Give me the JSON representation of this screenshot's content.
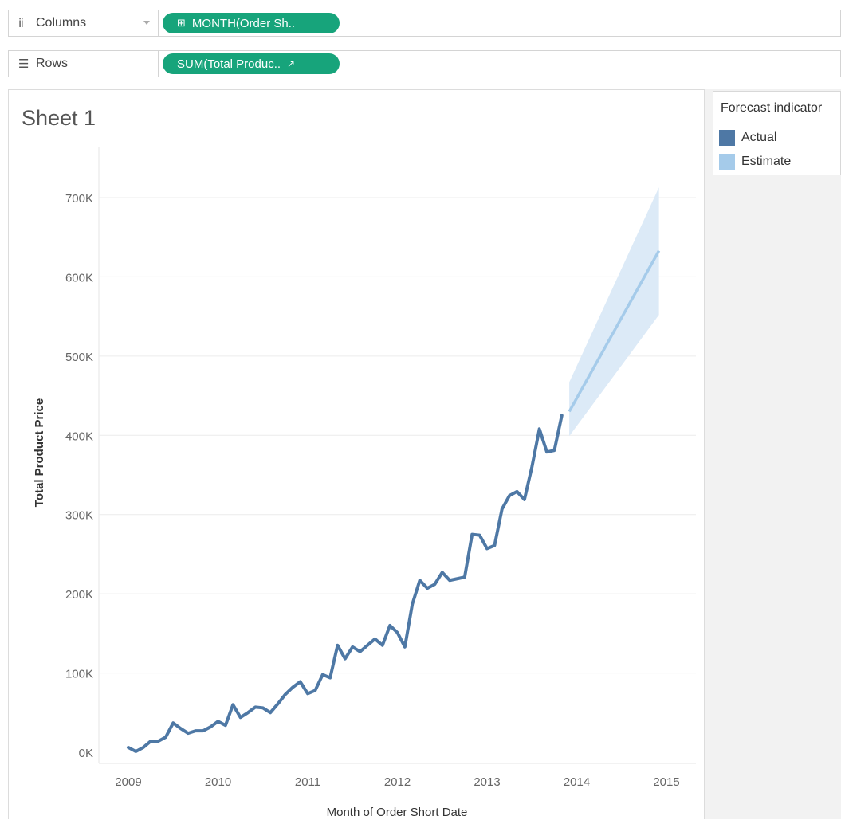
{
  "shelves": {
    "columns": {
      "label": "Columns",
      "icon": "columns-icon",
      "pill": "MONTH(Order Sh..",
      "pill_icon": "expand-icon"
    },
    "rows": {
      "label": "Rows",
      "icon": "rows-icon",
      "pill": "SUM(Total Produc..",
      "pill_icon": "forecast-icon"
    }
  },
  "sheet": {
    "title": "Sheet 1"
  },
  "legend": {
    "title": "Forecast indicator",
    "items": [
      {
        "label": "Actual",
        "color": "#4e78a5"
      },
      {
        "label": "Estimate",
        "color": "#a5cbea"
      }
    ]
  },
  "chart_data": {
    "type": "line",
    "xlabel": "Month of Order Short Date",
    "ylabel": "Total Product Price",
    "xlim": [
      2009,
      2015
    ],
    "ylim": [
      0,
      700000
    ],
    "x_ticks": [
      "2009",
      "2010",
      "2011",
      "2012",
      "2013",
      "2014",
      "2015"
    ],
    "y_ticks": [
      "0K",
      "100K",
      "200K",
      "300K",
      "400K",
      "500K",
      "600K",
      "700K"
    ],
    "grid": true,
    "legend_position": "right",
    "series": [
      {
        "name": "Actual",
        "color": "#4e78a5",
        "points": [
          [
            "2009-01",
            6000
          ],
          [
            "2009-02",
            1000
          ],
          [
            "2009-03",
            6000
          ],
          [
            "2009-04",
            14000
          ],
          [
            "2009-05",
            14000
          ],
          [
            "2009-06",
            19000
          ],
          [
            "2009-07",
            37000
          ],
          [
            "2009-08",
            30000
          ],
          [
            "2009-09",
            24000
          ],
          [
            "2009-10",
            27000
          ],
          [
            "2009-11",
            27000
          ],
          [
            "2009-12",
            32000
          ],
          [
            "2010-01",
            39000
          ],
          [
            "2010-02",
            34000
          ],
          [
            "2010-03",
            60000
          ],
          [
            "2010-04",
            44000
          ],
          [
            "2010-05",
            50000
          ],
          [
            "2010-06",
            57000
          ],
          [
            "2010-07",
            56000
          ],
          [
            "2010-08",
            50000
          ],
          [
            "2010-09",
            61000
          ],
          [
            "2010-10",
            73000
          ],
          [
            "2010-11",
            82000
          ],
          [
            "2010-12",
            89000
          ],
          [
            "2011-01",
            74000
          ],
          [
            "2011-02",
            78000
          ],
          [
            "2011-03",
            98000
          ],
          [
            "2011-04",
            94000
          ],
          [
            "2011-05",
            135000
          ],
          [
            "2011-06",
            118000
          ],
          [
            "2011-07",
            133000
          ],
          [
            "2011-08",
            127000
          ],
          [
            "2011-09",
            135000
          ],
          [
            "2011-10",
            143000
          ],
          [
            "2011-11",
            135000
          ],
          [
            "2011-12",
            160000
          ],
          [
            "2012-01",
            151000
          ],
          [
            "2012-02",
            133000
          ],
          [
            "2012-03",
            187000
          ],
          [
            "2012-04",
            217000
          ],
          [
            "2012-05",
            207000
          ],
          [
            "2012-06",
            212000
          ],
          [
            "2012-07",
            227000
          ],
          [
            "2012-08",
            217000
          ],
          [
            "2012-09",
            219000
          ],
          [
            "2012-10",
            221000
          ],
          [
            "2012-11",
            275000
          ],
          [
            "2012-12",
            274000
          ],
          [
            "2013-01",
            257000
          ],
          [
            "2013-02",
            261000
          ],
          [
            "2013-03",
            307000
          ],
          [
            "2013-04",
            324000
          ],
          [
            "2013-05",
            329000
          ],
          [
            "2013-06",
            319000
          ],
          [
            "2013-07",
            360000
          ],
          [
            "2013-08",
            408000
          ],
          [
            "2013-09",
            379000
          ],
          [
            "2013-10",
            381000
          ],
          [
            "2013-11",
            425000
          ]
        ]
      },
      {
        "name": "Estimate",
        "color": "#a5cbea",
        "points": [
          [
            "2013-12",
            430000
          ],
          [
            "2014-12",
            633000
          ]
        ],
        "band_upper": [
          [
            "2013-12",
            467000
          ],
          [
            "2014-12",
            713000
          ]
        ],
        "band_lower": [
          [
            "2013-12",
            399000
          ],
          [
            "2014-12",
            552000
          ]
        ]
      }
    ]
  }
}
